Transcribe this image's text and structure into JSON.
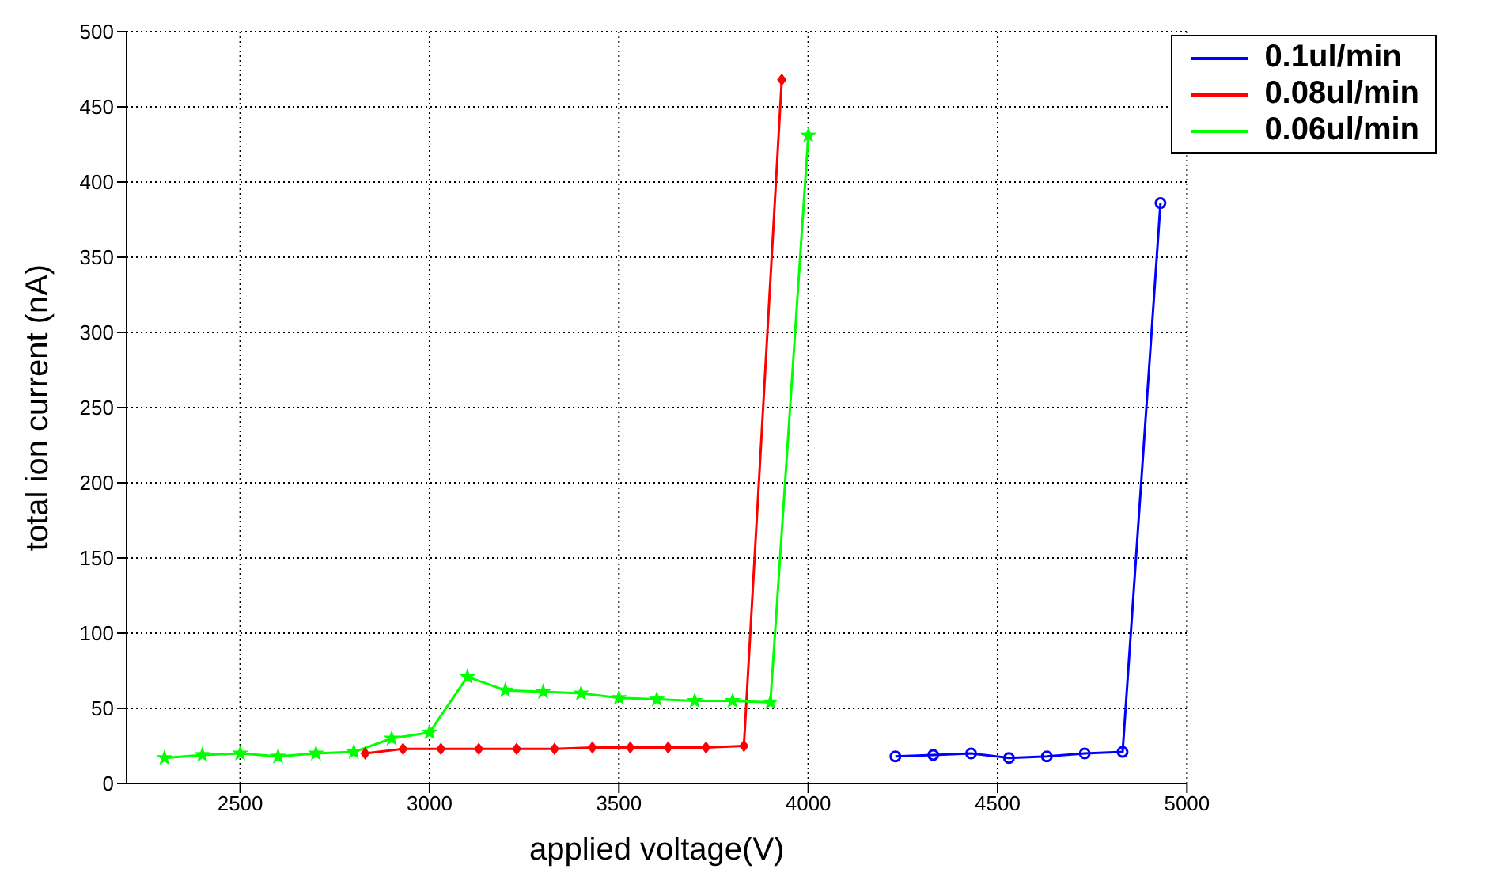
{
  "chart_data": {
    "type": "line",
    "xlabel": "applied voltage(V)",
    "ylabel": "total ion current (nA)",
    "xlim": [
      2200,
      5000
    ],
    "xticks": [
      2500,
      3000,
      3500,
      4000,
      4500,
      5000
    ],
    "ylim": [
      0,
      500
    ],
    "yticks": [
      0,
      50,
      100,
      150,
      200,
      250,
      300,
      350,
      400,
      450,
      500
    ],
    "grid": true,
    "legend": "top right",
    "line_style": "solid",
    "series": [
      {
        "name": "0.1ul/min",
        "color": "#0000ff",
        "marker": "circle",
        "x": [
          4230,
          4330,
          4430,
          4530,
          4630,
          4730,
          4830,
          4930
        ],
        "values": [
          18,
          19,
          20,
          17,
          18,
          20,
          21,
          386
        ]
      },
      {
        "name": "0.08ul/min",
        "color": "#ff0000",
        "marker": "diamond",
        "x": [
          2830,
          2930,
          3030,
          3130,
          3230,
          3330,
          3430,
          3530,
          3630,
          3730,
          3830,
          3930
        ],
        "values": [
          20,
          23,
          23,
          23,
          23,
          23,
          24,
          24,
          24,
          24,
          25,
          468
        ]
      },
      {
        "name": "0.06ul/min",
        "color": "#00ff00",
        "marker": "star",
        "x": [
          2300,
          2400,
          2500,
          2600,
          2700,
          2800,
          2900,
          3000,
          3100,
          3200,
          3300,
          3400,
          3500,
          3600,
          3700,
          3800,
          3900,
          4000
        ],
        "values": [
          17,
          19,
          20,
          18,
          20,
          21,
          30,
          34,
          71,
          62,
          61,
          60,
          57,
          56,
          55,
          55,
          54,
          431
        ]
      }
    ]
  }
}
